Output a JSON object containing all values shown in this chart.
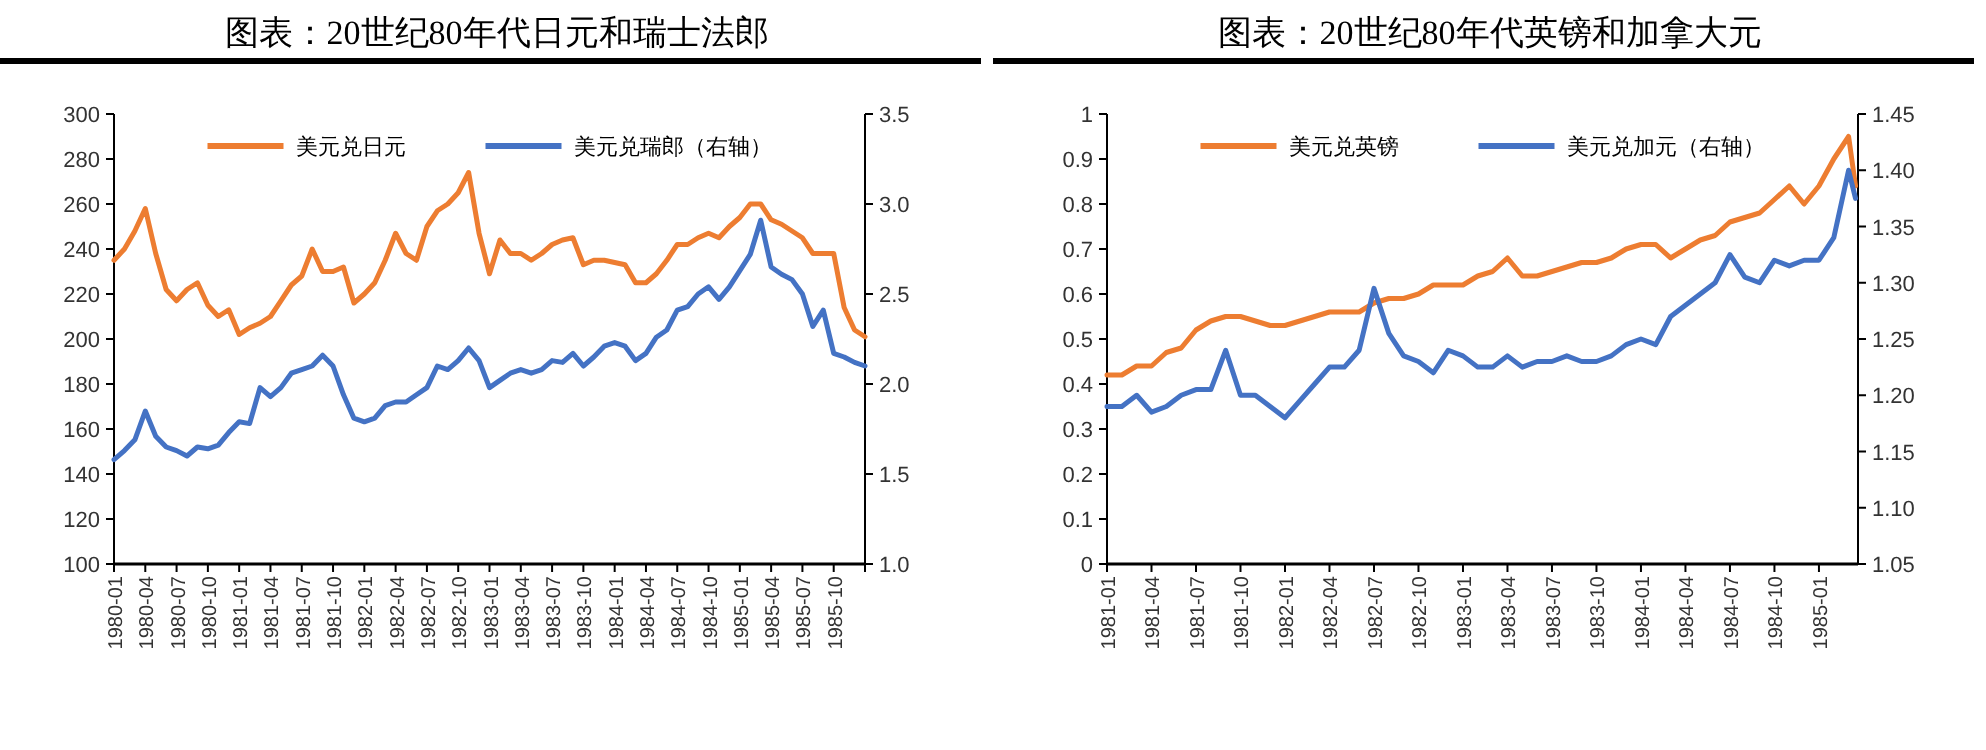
{
  "chart_data": [
    {
      "type": "line",
      "title": "图表：20世纪80年代日元和瑞士法郎",
      "legend": "top",
      "x": [
        "1980-01",
        "1980-02",
        "1980-03",
        "1980-04",
        "1980-05",
        "1980-06",
        "1980-07",
        "1980-08",
        "1980-09",
        "1980-10",
        "1980-11",
        "1980-12",
        "1981-01",
        "1981-02",
        "1981-03",
        "1981-04",
        "1981-05",
        "1981-06",
        "1981-07",
        "1981-08",
        "1981-09",
        "1981-10",
        "1981-11",
        "1981-12",
        "1982-01",
        "1982-02",
        "1982-03",
        "1982-04",
        "1982-05",
        "1982-06",
        "1982-07",
        "1982-08",
        "1982-09",
        "1982-10",
        "1982-11",
        "1982-12",
        "1983-01",
        "1983-02",
        "1983-03",
        "1983-04",
        "1983-05",
        "1983-06",
        "1983-07",
        "1983-08",
        "1983-09",
        "1983-10",
        "1983-11",
        "1983-12",
        "1984-01",
        "1984-02",
        "1984-03",
        "1984-04",
        "1984-05",
        "1984-06",
        "1984-07",
        "1984-08",
        "1984-09",
        "1984-10",
        "1984-11",
        "1984-12",
        "1985-01",
        "1985-02",
        "1985-03",
        "1985-04",
        "1985-05",
        "1985-06",
        "1985-07",
        "1985-08",
        "1985-09",
        "1985-10",
        "1985-11",
        "1985-12",
        "1986-01"
      ],
      "xlim": [
        "1980-01",
        "1986-01"
      ],
      "xticks": [
        "1980-01",
        "1980-04",
        "1980-07",
        "1980-10",
        "1981-01",
        "1981-04",
        "1981-07",
        "1981-10",
        "1982-01",
        "1982-04",
        "1982-07",
        "1982-10",
        "1983-01",
        "1983-04",
        "1983-07",
        "1983-10",
        "1984-01",
        "1984-04",
        "1984-07",
        "1984-10",
        "1985-01",
        "1985-04",
        "1985-07",
        "1985-10",
        {
          "value": "1986-01",
          "label": null
        }
      ],
      "ylim": [
        100,
        300
      ],
      "yticks": [
        100,
        120,
        140,
        160,
        180,
        200,
        220,
        240,
        260,
        280,
        300
      ],
      "y2lim": [
        1,
        3.5
      ],
      "y2ticks": [
        {
          "value": 1,
          "label": "1.0"
        },
        {
          "value": 1.5,
          "label": "1.5"
        },
        {
          "value": 2,
          "label": "2.0"
        },
        {
          "value": 2.5,
          "label": "2.5"
        },
        {
          "value": 3,
          "label": "3.0"
        },
        {
          "value": 3.5,
          "label": "3.5"
        }
      ],
      "series": [
        {
          "name": "美元兑日元",
          "color": "#ed7d31",
          "values": [
            235,
            240,
            248,
            258,
            238,
            222,
            217,
            222,
            225,
            215,
            210,
            213,
            202,
            205,
            207,
            210,
            217,
            224,
            228,
            240,
            230,
            230,
            232,
            216,
            220,
            225,
            235,
            247,
            238,
            235,
            250,
            257,
            260,
            265,
            274,
            247,
            229,
            244,
            238,
            238,
            235,
            238,
            242,
            244,
            245,
            233,
            235,
            235,
            234,
            233,
            225,
            225,
            229,
            235,
            242,
            242,
            245,
            247,
            245,
            250,
            254,
            260,
            260,
            253,
            251,
            248,
            245,
            238,
            238,
            238,
            214,
            204,
            201
          ]
        },
        {
          "name": "美元兑瑞郎（右轴）",
          "color": "#4472c4",
          "axis": "y2",
          "values": [
            1.58,
            1.63,
            1.69,
            1.85,
            1.71,
            1.65,
            1.63,
            1.6,
            1.65,
            1.64,
            1.66,
            1.73,
            1.79,
            1.78,
            1.98,
            1.93,
            1.98,
            2.06,
            2.08,
            2.1,
            2.16,
            2.1,
            1.94,
            1.81,
            1.79,
            1.81,
            1.88,
            1.9,
            1.9,
            1.94,
            1.98,
            2.1,
            2.08,
            2.13,
            2.2,
            2.13,
            1.98,
            2.02,
            2.06,
            2.08,
            2.06,
            2.08,
            2.13,
            2.12,
            2.17,
            2.1,
            2.15,
            2.21,
            2.23,
            2.21,
            2.13,
            2.17,
            2.26,
            2.3,
            2.41,
            2.43,
            2.5,
            2.54,
            2.47,
            2.54,
            2.63,
            2.72,
            2.91,
            2.65,
            2.61,
            2.58,
            2.5,
            2.32,
            2.41,
            2.17,
            2.15,
            2.12,
            2.1
          ]
        }
      ]
    },
    {
      "type": "line",
      "title": "图表：20世纪80年代英镑和加拿大元",
      "legend": "top",
      "x": [
        "1981-01",
        "1981-02",
        "1981-03",
        "1981-04",
        "1981-05",
        "1981-06",
        "1981-07",
        "1981-08",
        "1981-09",
        "1981-10",
        "1981-11",
        "1981-12",
        "1982-01",
        "1982-02",
        "1982-03",
        "1982-04",
        "1982-05",
        "1982-06",
        "1982-07",
        "1982-08",
        "1982-09",
        "1982-10",
        "1982-11",
        "1982-12",
        "1983-01",
        "1983-02",
        "1983-03",
        "1983-04",
        "1983-05",
        "1983-06",
        "1983-07",
        "1983-08",
        "1983-09",
        "1983-10",
        "1983-11",
        "1983-12",
        "1984-01",
        "1984-02",
        "1984-03",
        "1984-04",
        "1984-05",
        "1984-06",
        "1984-07",
        "1984-08",
        "1984-09",
        "1984-10",
        "1984-11",
        "1984-12",
        "1985-01",
        "1985-02",
        "1985-03",
        "1985-03-15"
      ],
      "xlim": [
        "1981-01",
        "1985-03-20"
      ],
      "xticks": [
        "1981-01",
        "1981-04",
        "1981-07",
        "1981-10",
        "1982-01",
        "1982-04",
        "1982-07",
        "1982-10",
        "1983-01",
        "1983-04",
        "1983-07",
        "1983-10",
        "1984-01",
        "1984-04",
        "1984-07",
        "1984-10",
        "1985-01"
      ],
      "ylim": [
        0,
        1
      ],
      "yticks": [
        0,
        0.1,
        0.2,
        0.3,
        0.4,
        0.5,
        0.6,
        0.7,
        0.8,
        0.9,
        1
      ],
      "y2lim": [
        1.05,
        1.45
      ],
      "y2ticks": [
        1.05,
        {
          "value": 1.1,
          "label": "1.10"
        },
        1.15,
        {
          "value": 1.2,
          "label": "1.20"
        },
        1.25,
        {
          "value": 1.3,
          "label": "1.30"
        },
        1.35,
        {
          "value": 1.4,
          "label": "1.40"
        },
        1.45
      ],
      "series": [
        {
          "name": "美元兑英镑",
          "color": "#ed7d31",
          "values": [
            0.42,
            0.42,
            0.44,
            0.44,
            0.47,
            0.48,
            0.52,
            0.54,
            0.55,
            0.55,
            0.54,
            0.53,
            0.53,
            0.54,
            0.55,
            0.56,
            0.56,
            0.56,
            0.58,
            0.59,
            0.59,
            0.6,
            0.62,
            0.62,
            0.62,
            0.64,
            0.65,
            0.68,
            0.64,
            0.64,
            0.65,
            0.66,
            0.67,
            0.67,
            0.68,
            0.7,
            0.71,
            0.71,
            0.68,
            0.7,
            0.72,
            0.73,
            0.76,
            0.77,
            0.78,
            0.81,
            0.84,
            0.8,
            0.84,
            0.9,
            0.95,
            0.84
          ]
        },
        {
          "name": "美元兑加元（右轴）",
          "color": "#4472c4",
          "axis": "y2",
          "values": [
            1.19,
            1.19,
            1.2,
            1.185,
            1.19,
            1.2,
            1.205,
            1.205,
            1.24,
            1.2,
            1.2,
            1.19,
            1.18,
            1.195,
            1.21,
            1.225,
            1.225,
            1.24,
            1.295,
            1.255,
            1.235,
            1.23,
            1.22,
            1.24,
            1.235,
            1.225,
            1.225,
            1.235,
            1.225,
            1.23,
            1.23,
            1.235,
            1.23,
            1.23,
            1.235,
            1.245,
            1.25,
            1.245,
            1.27,
            1.28,
            1.29,
            1.3,
            1.325,
            1.305,
            1.3,
            1.32,
            1.315,
            1.32,
            1.32,
            1.34,
            1.4,
            1.375
          ]
        }
      ]
    }
  ]
}
